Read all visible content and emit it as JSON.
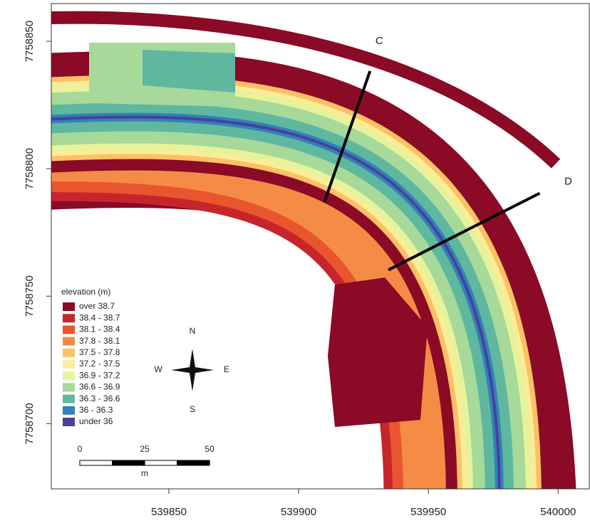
{
  "chart_data": {
    "type": "map",
    "xlim": [
      539804.7,
      540012
    ],
    "ylim": [
      7758674.4,
      7758864.8
    ],
    "xticks": [
      539850,
      539900,
      539950,
      540000
    ],
    "yticks": [
      7758700,
      7758750,
      7758800,
      7758850
    ],
    "legend": {
      "title": "elevation (m)",
      "classes": [
        {
          "label": "over 38.7",
          "color": "#8b0a26"
        },
        {
          "label": "38.4 - 38.7",
          "color": "#c6262b"
        },
        {
          "label": "38.1 - 38.4",
          "color": "#e8552f"
        },
        {
          "label": "37.8 - 38.1",
          "color": "#f48c45"
        },
        {
          "label": "37.5 - 37.8",
          "color": "#fbc165"
        },
        {
          "label": "37.2 - 37.5",
          "color": "#fdeb98"
        },
        {
          "label": "36.9 - 37.2",
          "color": "#e6f39b"
        },
        {
          "label": "36.6 - 36.9",
          "color": "#a6d99a"
        },
        {
          "label": "36.3 - 36.6",
          "color": "#5fb79f"
        },
        {
          "label": "36 - 36.3",
          "color": "#2f83b8"
        },
        {
          "label": "under 36",
          "color": "#4b3f9c"
        }
      ]
    },
    "profiles": [
      {
        "name": "C",
        "x": [
          539909.9,
          539927.5
        ],
        "y": [
          7758786.8,
          7758838.3
        ]
      },
      {
        "name": "D",
        "x": [
          539934.6,
          539992.9
        ],
        "y": [
          7758760.3,
          7758790.4
        ]
      }
    ],
    "compass": {
      "north": "N",
      "south": "S",
      "east": "E",
      "west": "W"
    },
    "scale_bar": {
      "ticks": [
        0,
        25,
        50
      ],
      "unit": "m"
    }
  }
}
